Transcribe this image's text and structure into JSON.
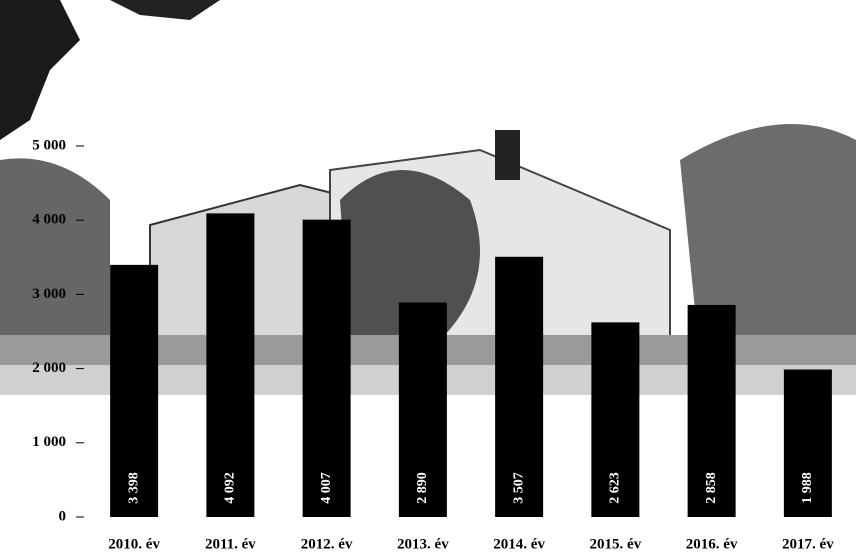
{
  "chart_data": {
    "type": "bar",
    "categories": [
      "2010. év",
      "2011. év",
      "2012. év",
      "2013. év",
      "2014. év",
      "2015. év",
      "2016. év",
      "2017. év"
    ],
    "values": [
      3398,
      4092,
      4007,
      2890,
      3507,
      2623,
      2858,
      1988
    ],
    "value_labels": [
      "3 398",
      "4 092",
      "4 007",
      "2 890",
      "3 507",
      "2 623",
      "2 858",
      "1 988"
    ],
    "color": "#000000",
    "ylim": [
      0,
      5000
    ],
    "yticks": [
      0,
      {
        "value": 1000,
        "label": "1 000"
      },
      {
        "value": 2000,
        "label": "2 000"
      },
      {
        "value": 3000,
        "label": "3 000"
      },
      {
        "value": 4000,
        "label": "4 000"
      },
      {
        "value": 5000,
        "label": "5 000"
      }
    ],
    "grid": false
  }
}
